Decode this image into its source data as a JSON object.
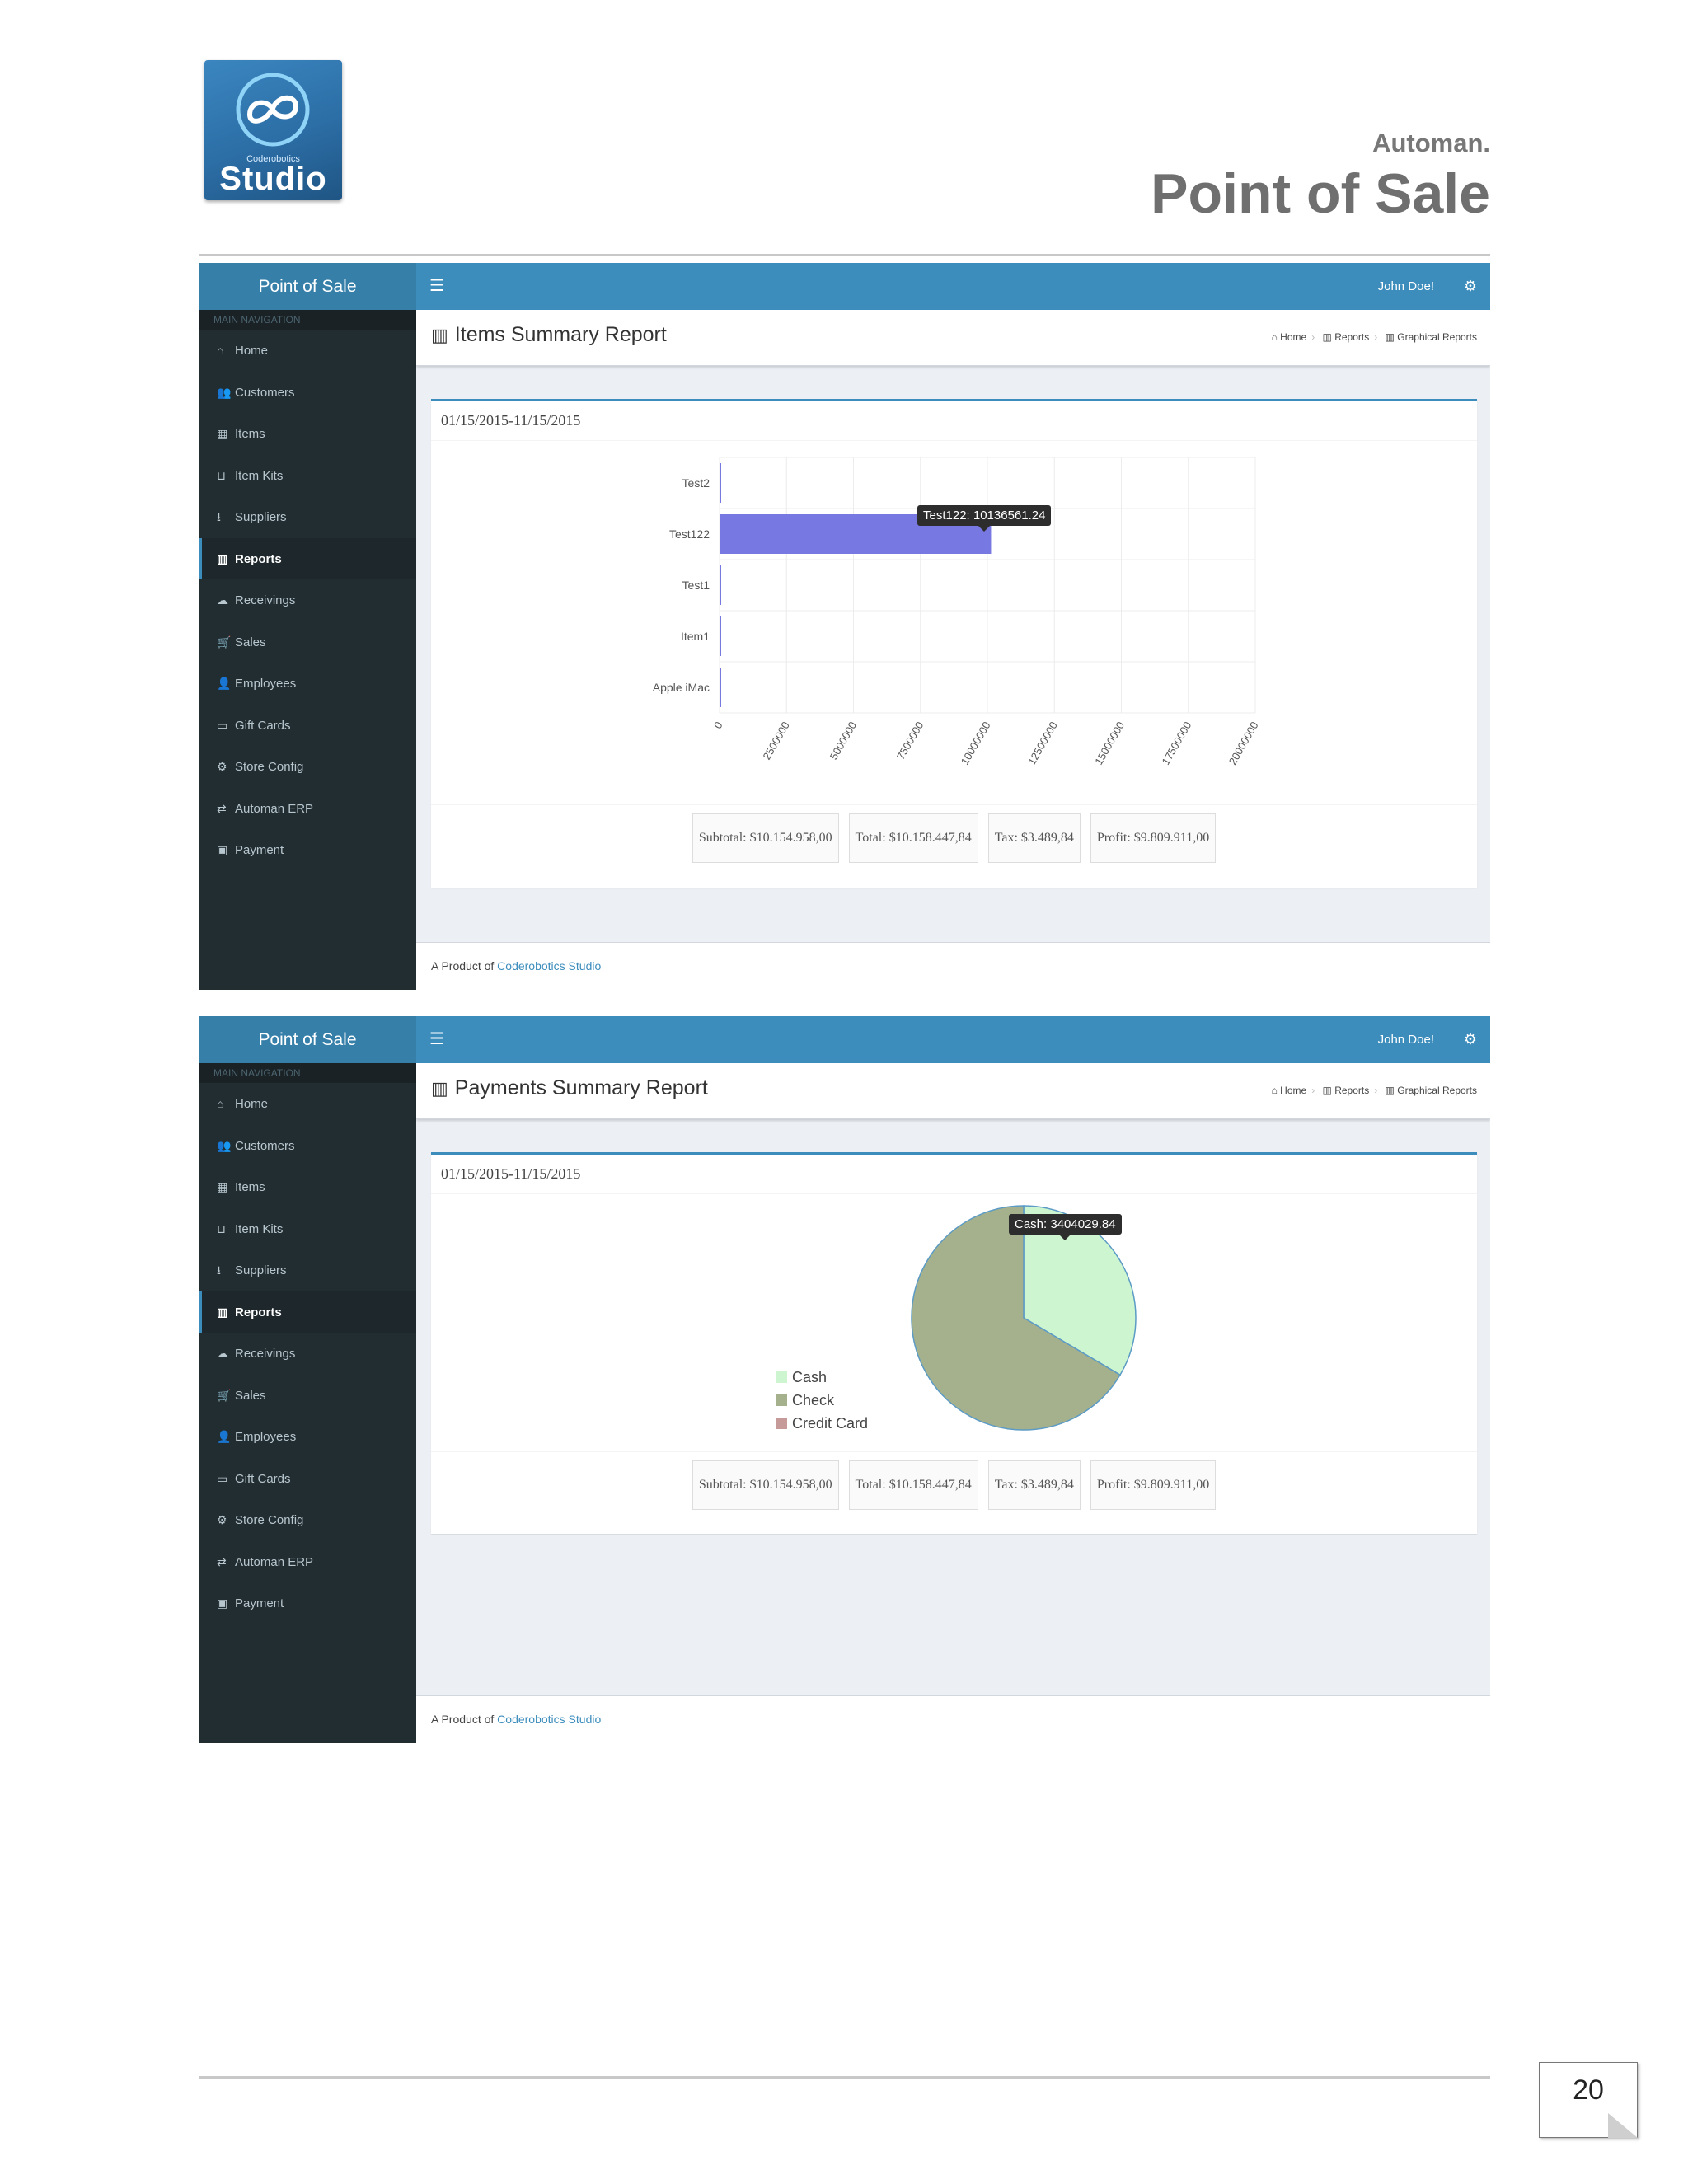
{
  "doc": {
    "logo": {
      "small": "Coderobotics",
      "big": "Studio"
    },
    "subtitle": "Automan.",
    "title": "Point of Sale",
    "page_number": "20"
  },
  "app": {
    "brand": "Point of Sale",
    "user": "John Doe!",
    "nav_header": "MAIN NAVIGATION",
    "nav": [
      {
        "label": "Home",
        "icon": "home-icon"
      },
      {
        "label": "Customers",
        "icon": "users-icon"
      },
      {
        "label": "Items",
        "icon": "table-icon"
      },
      {
        "label": "Item Kits",
        "icon": "inbox-icon"
      },
      {
        "label": "Suppliers",
        "icon": "download-icon"
      },
      {
        "label": "Reports",
        "icon": "bar-chart-icon",
        "active": true
      },
      {
        "label": "Receivings",
        "icon": "cloud-upload-icon"
      },
      {
        "label": "Sales",
        "icon": "cart-icon"
      },
      {
        "label": "Employees",
        "icon": "user-icon"
      },
      {
        "label": "Gift Cards",
        "icon": "credit-card-icon"
      },
      {
        "label": "Store Config",
        "icon": "gears-icon"
      },
      {
        "label": "Automan ERP",
        "icon": "exchange-icon"
      },
      {
        "label": "Payment",
        "icon": "money-icon"
      }
    ],
    "breadcrumb": [
      "Home",
      "Reports",
      "Graphical Reports"
    ],
    "footer": {
      "prefix": "A Product of",
      "link": "Coderobotics Studio"
    }
  },
  "report1": {
    "title": "Items Summary Report",
    "date_range": "01/15/2015-11/15/2015",
    "totals": {
      "subtotal": "Subtotal: $10.154.958,00",
      "total": "Total: $10.158.447,84",
      "tax": "Tax: $3.489,84",
      "profit": "Profit: $9.809.911,00"
    },
    "tooltip": "Test122: 10136561.24"
  },
  "report2": {
    "title": "Payments Summary Report",
    "date_range": "01/15/2015-11/15/2015",
    "totals": {
      "subtotal": "Subtotal: $10.154.958,00",
      "total": "Total: $10.158.447,84",
      "tax": "Tax: $3.489,84",
      "profit": "Profit: $9.809.911,00"
    },
    "tooltip": "Cash: 3404029.84"
  },
  "chart_data": [
    {
      "type": "bar",
      "orientation": "horizontal",
      "categories": [
        "Test2",
        "Test122",
        "Test1",
        "Item1",
        "Apple iMac"
      ],
      "values": [
        10000,
        10136561.24,
        10000,
        10000,
        10000
      ],
      "xlim": [
        0,
        20000000
      ],
      "xticks": [
        "0",
        "2500000",
        "5000000",
        "7500000",
        "10000000",
        "12500000",
        "15000000",
        "17500000",
        "20000000"
      ],
      "bar_color": "#7878e2",
      "grid": true
    },
    {
      "type": "pie",
      "labels": [
        "Cash",
        "Check",
        "Credit Card"
      ],
      "values": [
        3404029.84,
        6754418.0,
        0
      ],
      "colors": [
        "#cdf5cf",
        "#a4b18c",
        "#c79a9a"
      ],
      "legend": "left"
    }
  ]
}
